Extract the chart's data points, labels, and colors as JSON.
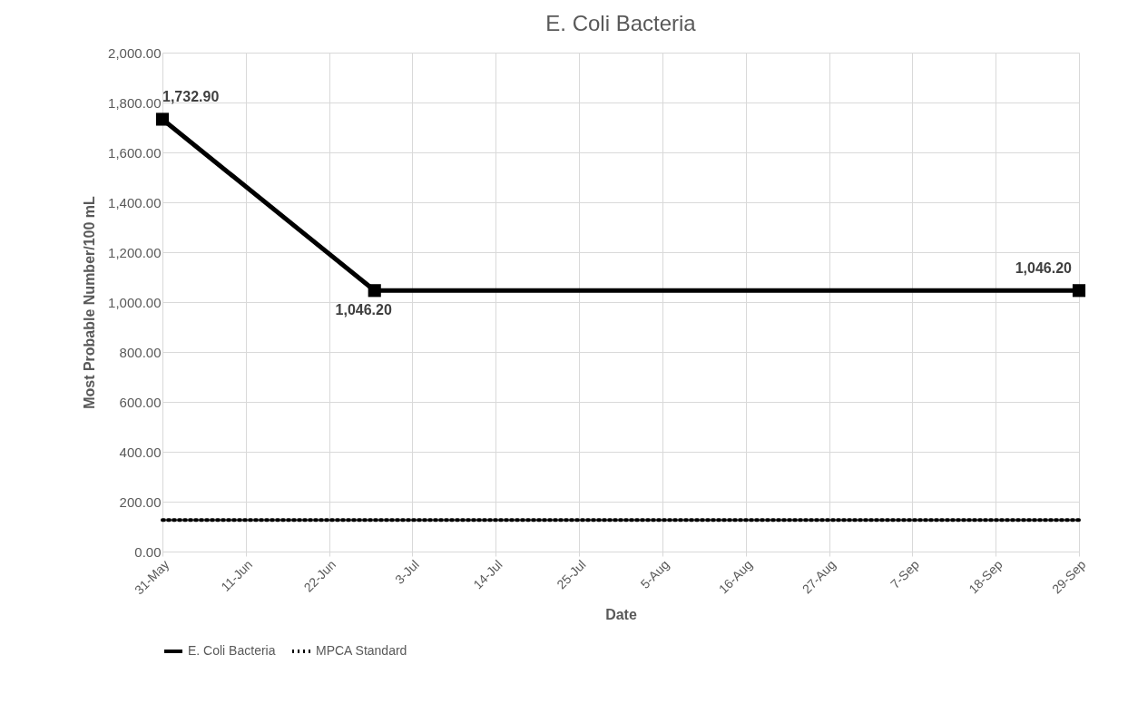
{
  "chart_data": {
    "type": "line",
    "title": "E. Coli Bacteria",
    "xlabel": "Date",
    "ylabel": "Most Probable Number/100 mL",
    "x": [
      "--05-31",
      "--06-28",
      "--09-29"
    ],
    "series": [
      {
        "name": "E. Coli Bacteria",
        "color": "#000000",
        "values": [
          1732.9,
          1046.2,
          1046.2
        ],
        "marker": "square",
        "line_style": "solid"
      },
      {
        "name": "MPCA Standard",
        "color": "#000000",
        "x": [
          "--05-31",
          "--09-29"
        ],
        "values": [
          126,
          126
        ],
        "marker": "none",
        "line_style": "dotted"
      }
    ],
    "value_labels": [
      "1,732.90",
      "1,046.20",
      "1,046.20"
    ],
    "xlim": [
      "--05-31",
      "--09-29"
    ],
    "xticks": [
      {
        "value": "--05-31",
        "label": "31-May"
      },
      {
        "value": "--06-11",
        "label": "11-Jun"
      },
      {
        "value": "--06-22",
        "label": "22-Jun"
      },
      {
        "value": "--07-03",
        "label": "3-Jul"
      },
      {
        "value": "--07-14",
        "label": "14-Jul"
      },
      {
        "value": "--07-25",
        "label": "25-Jul"
      },
      {
        "value": "--08-05",
        "label": "5-Aug"
      },
      {
        "value": "--08-16",
        "label": "16-Aug"
      },
      {
        "value": "--08-27",
        "label": "27-Aug"
      },
      {
        "value": "--09-07",
        "label": "7-Sep"
      },
      {
        "value": "--09-18",
        "label": "18-Sep"
      },
      {
        "value": "--09-29",
        "label": "29-Sep"
      }
    ],
    "ylim": [
      0,
      2000
    ],
    "yticks": [
      {
        "value": 0,
        "label": "0.00"
      },
      {
        "value": 200,
        "label": "200.00"
      },
      {
        "value": 400,
        "label": "400.00"
      },
      {
        "value": 600,
        "label": "600.00"
      },
      {
        "value": 800,
        "label": "800.00"
      },
      {
        "value": 1000,
        "label": "1,000.00"
      },
      {
        "value": 1200,
        "label": "1,200.00"
      },
      {
        "value": 1400,
        "label": "1,400.00"
      },
      {
        "value": 1600,
        "label": "1,600.00"
      },
      {
        "value": 1800,
        "label": "1,800.00"
      },
      {
        "value": 2000,
        "label": "2,000.00"
      }
    ],
    "grid": true,
    "legend": "bottom"
  }
}
